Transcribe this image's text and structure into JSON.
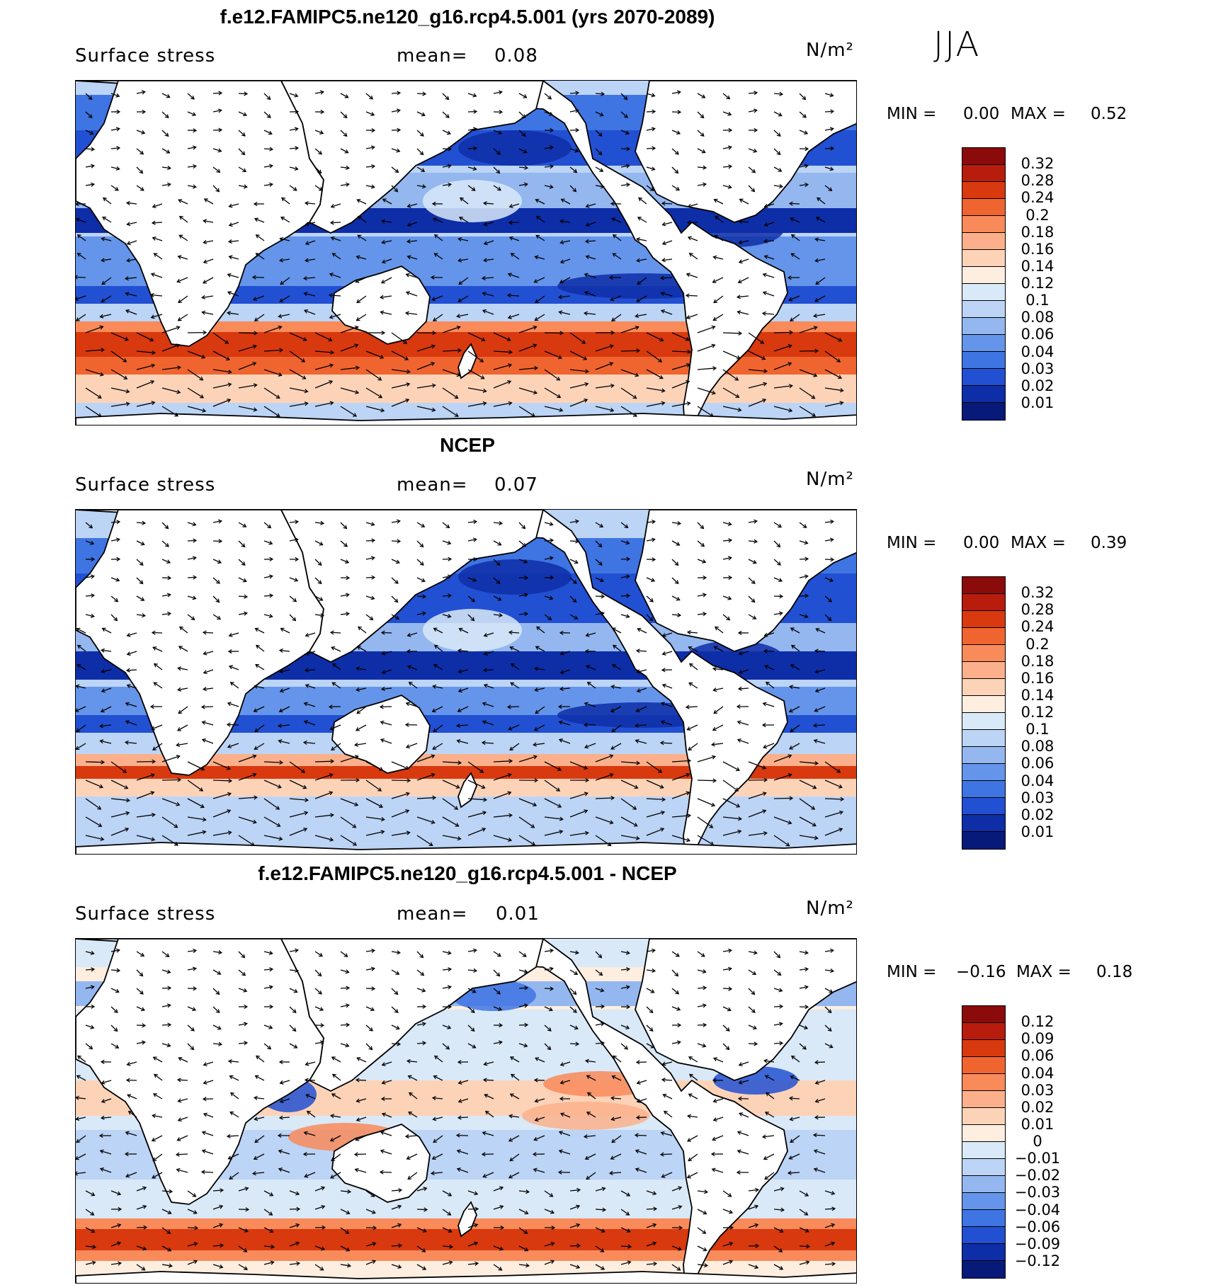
{
  "season": "JJA",
  "panels": [
    {
      "title": "f.e12.FAMIPC5.ne120_g16.rcp4.5.001 (yrs 2070-2089)",
      "variable": "Surface stress",
      "mean_label": "mean=",
      "mean": "0.08",
      "units": "N/m²",
      "min_label": "MIN =",
      "min": "0.00",
      "max_label": "MAX =",
      "max": "0.52",
      "colorbar": {
        "labels": [
          "0.32",
          "0.28",
          "0.24",
          "0.2",
          "0.18",
          "0.16",
          "0.14",
          "0.12",
          "0.1",
          "0.08",
          "0.06",
          "0.04",
          "0.03",
          "0.02",
          "0.01"
        ],
        "colors": [
          "#8b0a0a",
          "#b71c0c",
          "#d8390e",
          "#f0652f",
          "#f98a5a",
          "#fbb08b",
          "#fdd3b8",
          "#fdeee0",
          "#d9e9f8",
          "#bcd4f5",
          "#94b7f0",
          "#6595ea",
          "#3f74e3",
          "#2250d2",
          "#0e2ea8",
          "#071a7a"
        ]
      },
      "chart_data": {
        "type": "heatmap",
        "field": "Surface stress magnitude with wind stress vectors",
        "units": "N/m^2",
        "mean": 0.08,
        "min": 0.0,
        "max": 0.52,
        "contour_levels": [
          0.01,
          0.02,
          0.03,
          0.04,
          0.06,
          0.08,
          0.1,
          0.12,
          0.14,
          0.16,
          0.18,
          0.2,
          0.24,
          0.28,
          0.32
        ]
      }
    },
    {
      "title": "NCEP",
      "variable": "Surface stress",
      "mean_label": "mean=",
      "mean": "0.07",
      "units": "N/m²",
      "min_label": "MIN =",
      "min": "0.00",
      "max_label": "MAX =",
      "max": "0.39",
      "colorbar": {
        "labels": [
          "0.32",
          "0.28",
          "0.24",
          "0.2",
          "0.18",
          "0.16",
          "0.14",
          "0.12",
          "0.1",
          "0.08",
          "0.06",
          "0.04",
          "0.03",
          "0.02",
          "0.01"
        ],
        "colors": [
          "#8b0a0a",
          "#b71c0c",
          "#d8390e",
          "#f0652f",
          "#f98a5a",
          "#fbb08b",
          "#fdd3b8",
          "#fdeee0",
          "#d9e9f8",
          "#bcd4f5",
          "#94b7f0",
          "#6595ea",
          "#3f74e3",
          "#2250d2",
          "#0e2ea8",
          "#071a7a"
        ]
      },
      "chart_data": {
        "type": "heatmap",
        "field": "Surface stress magnitude with wind stress vectors",
        "units": "N/m^2",
        "mean": 0.07,
        "min": 0.0,
        "max": 0.39,
        "contour_levels": [
          0.01,
          0.02,
          0.03,
          0.04,
          0.06,
          0.08,
          0.1,
          0.12,
          0.14,
          0.16,
          0.18,
          0.2,
          0.24,
          0.28,
          0.32
        ]
      }
    },
    {
      "title": "f.e12.FAMIPC5.ne120_g16.rcp4.5.001 - NCEP",
      "variable": "Surface stress",
      "mean_label": "mean=",
      "mean": "0.01",
      "units": "N/m²",
      "min_label": "MIN =",
      "min": "−0.16",
      "max_label": "MAX =",
      "max": "0.18",
      "colorbar": {
        "labels": [
          "0.12",
          "0.09",
          "0.06",
          "0.04",
          "0.03",
          "0.02",
          "0.01",
          "0",
          "−0.01",
          "−0.02",
          "−0.03",
          "−0.04",
          "−0.06",
          "−0.09",
          "−0.12"
        ],
        "colors": [
          "#8b0a0a",
          "#b71c0c",
          "#d8390e",
          "#f0652f",
          "#f98a5a",
          "#fbb08b",
          "#fdd3b8",
          "#fdeee0",
          "#d9e9f8",
          "#bcd4f5",
          "#94b7f0",
          "#6595ea",
          "#3f74e3",
          "#2250d2",
          "#0e2ea8",
          "#071a7a"
        ]
      },
      "chart_data": {
        "type": "heatmap",
        "field": "Surface stress difference (model - NCEP) with vector differences",
        "units": "N/m^2",
        "mean": 0.01,
        "min": -0.16,
        "max": 0.18,
        "contour_levels": [
          -0.12,
          -0.09,
          -0.06,
          -0.04,
          -0.03,
          -0.02,
          -0.01,
          0,
          0.01,
          0.02,
          0.03,
          0.04,
          0.06,
          0.09,
          0.12
        ]
      }
    }
  ]
}
